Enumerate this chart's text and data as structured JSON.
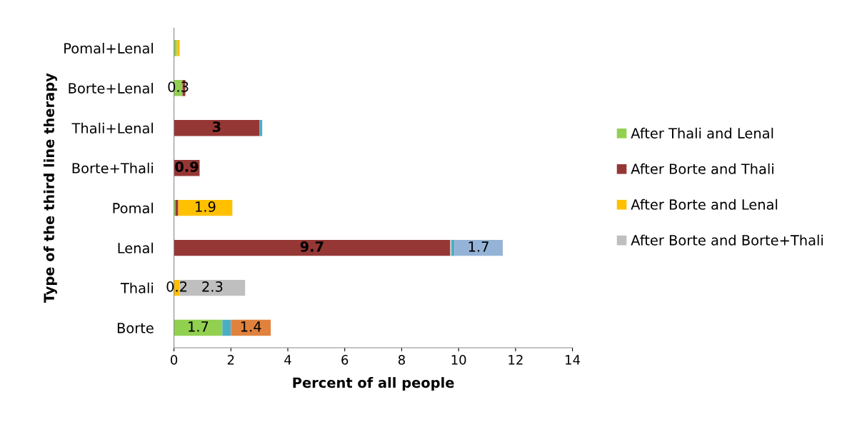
{
  "chart_data": {
    "type": "bar",
    "orientation": "horizontal",
    "stacked": true,
    "xlabel": "Percent of all people",
    "ylabel": "Type of the third line therapy",
    "categories": [
      "Pomal+Lenal",
      "Borte+Lenal",
      "Thali+Lenal",
      "Borte+Thali",
      "Pomal",
      "Lenal",
      "Thali",
      "Borte"
    ],
    "series": [
      {
        "name": "After Thali and Lenal",
        "color": "#92d050",
        "values": [
          0.1,
          0.3,
          null,
          null,
          0.05,
          null,
          null,
          1.7
        ],
        "value_labels": [
          null,
          "0.3",
          null,
          null,
          null,
          null,
          null,
          "1.7"
        ]
      },
      {
        "name": "After Borte and Thali",
        "color": "#953735",
        "values": [
          null,
          0.1,
          3,
          0.9,
          0.1,
          9.7,
          null,
          null
        ],
        "value_labels": [
          null,
          null,
          "3",
          "0.9",
          null,
          "9.7",
          null,
          null
        ]
      },
      {
        "name": "After Borte and Lenal",
        "color": "#ffc000",
        "values": [
          0.1,
          null,
          null,
          null,
          1.9,
          null,
          0.2,
          null
        ],
        "value_labels": [
          null,
          null,
          null,
          null,
          "1.9",
          null,
          "0.2",
          null
        ]
      },
      {
        "name": "After Borte and Borte+Thali",
        "color": "#bfbfbf",
        "values": [
          null,
          null,
          null,
          null,
          null,
          0.05,
          2.3,
          null
        ],
        "value_labels": [
          null,
          null,
          null,
          null,
          null,
          null,
          "2.3",
          null
        ]
      },
      {
        "color": "#4bacc6",
        "values": [
          null,
          null,
          0.1,
          null,
          null,
          0.1,
          null,
          0.3
        ]
      },
      {
        "color": "#e0823d",
        "values": [
          null,
          null,
          null,
          null,
          null,
          null,
          null,
          1.4
        ],
        "value_labels": [
          null,
          null,
          null,
          null,
          null,
          null,
          null,
          "1.4"
        ]
      },
      {
        "color": "#95b3d7",
        "values": [
          null,
          null,
          null,
          null,
          null,
          1.7,
          null,
          null
        ],
        "value_labels": [
          null,
          null,
          null,
          null,
          null,
          "1.7",
          null,
          null
        ]
      }
    ],
    "xlim": [
      0,
      14
    ],
    "xticks": [
      0,
      2,
      4,
      6,
      8,
      10,
      12,
      14
    ],
    "grid": false,
    "legend": "right"
  }
}
